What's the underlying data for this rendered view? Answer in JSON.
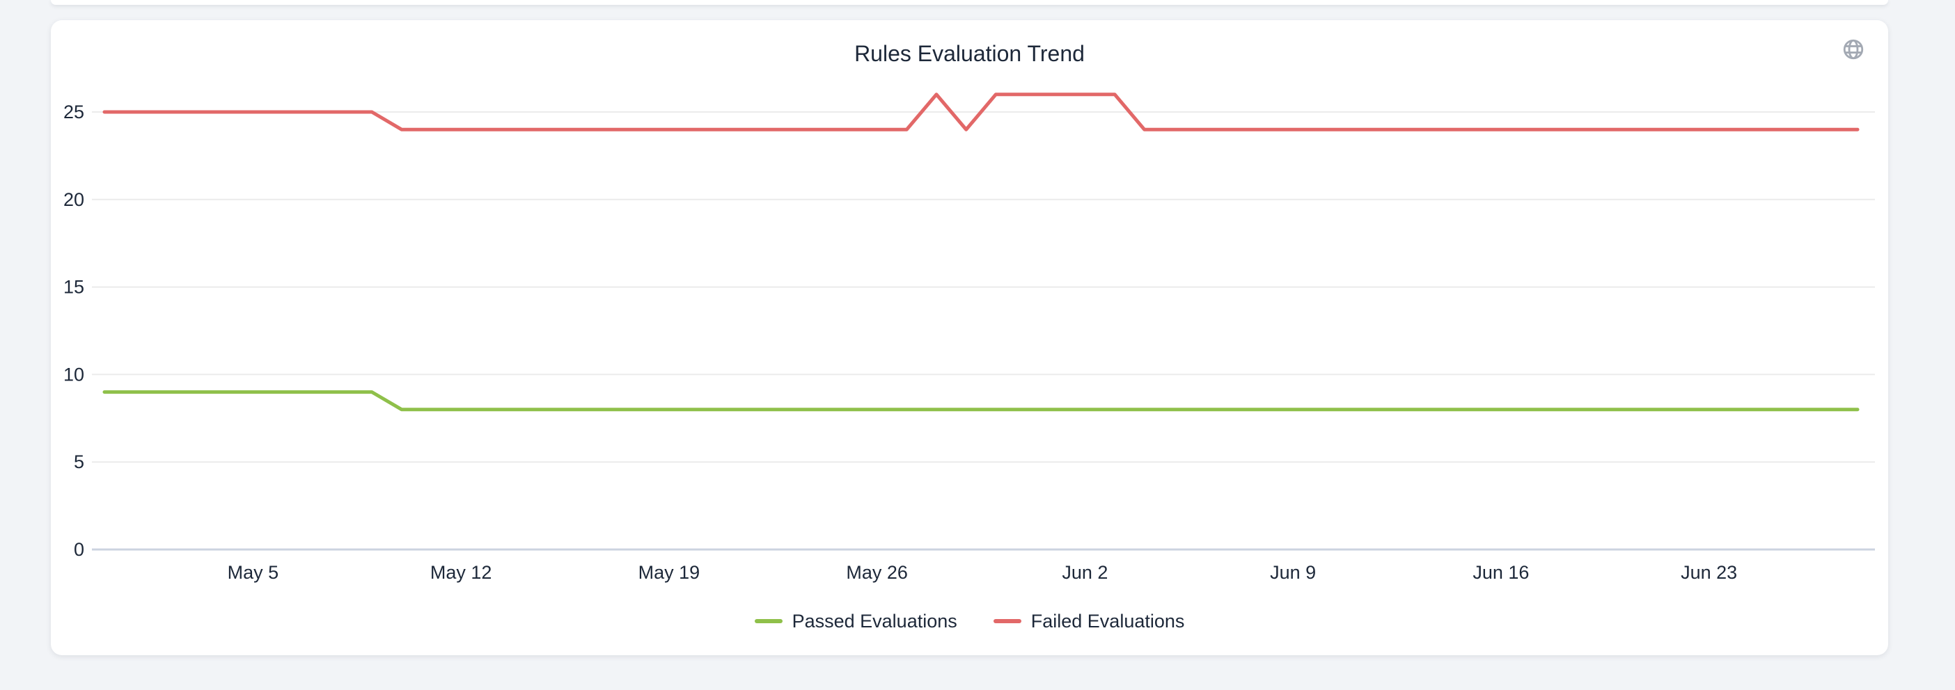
{
  "card": {
    "title": "Rules Evaluation Trend"
  },
  "theme": {
    "grid_color": "#ebebeb",
    "axis_baseline_color": "#ccd3e0",
    "text_color": "#1d2839",
    "icon_color": "#a3a9b3",
    "passed_color": "#8fc04a",
    "failed_color": "#e26868"
  },
  "chart_data": {
    "type": "line",
    "title": "Rules Evaluation Trend",
    "xlabel": "",
    "ylabel": "",
    "grid": true,
    "legend_position": "bottom",
    "ylim": [
      0,
      27
    ],
    "y_ticks": [
      0,
      5,
      10,
      15,
      20,
      25
    ],
    "x_tick_labels": [
      "May 5",
      "May 12",
      "May 19",
      "May 26",
      "Jun 2",
      "Jun 9",
      "Jun 16",
      "Jun 23"
    ],
    "x_tick_indices": [
      5,
      12,
      19,
      26,
      33,
      40,
      47,
      54
    ],
    "x": [
      "Apr 30",
      "May 1",
      "May 2",
      "May 3",
      "May 4",
      "May 5",
      "May 6",
      "May 7",
      "May 8",
      "May 9",
      "May 10",
      "May 11",
      "May 12",
      "May 13",
      "May 14",
      "May 15",
      "May 16",
      "May 17",
      "May 18",
      "May 19",
      "May 20",
      "May 21",
      "May 22",
      "May 23",
      "May 24",
      "May 25",
      "May 26",
      "May 27",
      "May 28",
      "May 29",
      "May 30",
      "May 31",
      "Jun 1",
      "Jun 2",
      "Jun 3",
      "Jun 4",
      "Jun 5",
      "Jun 6",
      "Jun 7",
      "Jun 8",
      "Jun 9",
      "Jun 10",
      "Jun 11",
      "Jun 12",
      "Jun 13",
      "Jun 14",
      "Jun 15",
      "Jun 16",
      "Jun 17",
      "Jun 18",
      "Jun 19",
      "Jun 20",
      "Jun 21",
      "Jun 22",
      "Jun 23",
      "Jun 24",
      "Jun 25",
      "Jun 26",
      "Jun 27",
      "Jun 28"
    ],
    "series": [
      {
        "name": "Passed Evaluations",
        "color": "#8fc04a",
        "values": [
          9,
          9,
          9,
          9,
          9,
          9,
          9,
          9,
          9,
          9,
          8,
          8,
          8,
          8,
          8,
          8,
          8,
          8,
          8,
          8,
          8,
          8,
          8,
          8,
          8,
          8,
          8,
          8,
          8,
          8,
          8,
          8,
          8,
          8,
          8,
          8,
          8,
          8,
          8,
          8,
          8,
          8,
          8,
          8,
          8,
          8,
          8,
          8,
          8,
          8,
          8,
          8,
          8,
          8,
          8,
          8,
          8,
          8,
          8,
          8
        ]
      },
      {
        "name": "Failed Evaluations",
        "color": "#e26868",
        "values": [
          25,
          25,
          25,
          25,
          25,
          25,
          25,
          25,
          25,
          25,
          24,
          24,
          24,
          24,
          24,
          24,
          24,
          24,
          24,
          24,
          24,
          24,
          24,
          24,
          24,
          24,
          24,
          24,
          26,
          24,
          26,
          26,
          26,
          26,
          26,
          24,
          24,
          24,
          24,
          24,
          24,
          24,
          24,
          24,
          24,
          24,
          24,
          24,
          24,
          24,
          24,
          24,
          24,
          24,
          24,
          24,
          24,
          24,
          24,
          24
        ]
      }
    ]
  }
}
